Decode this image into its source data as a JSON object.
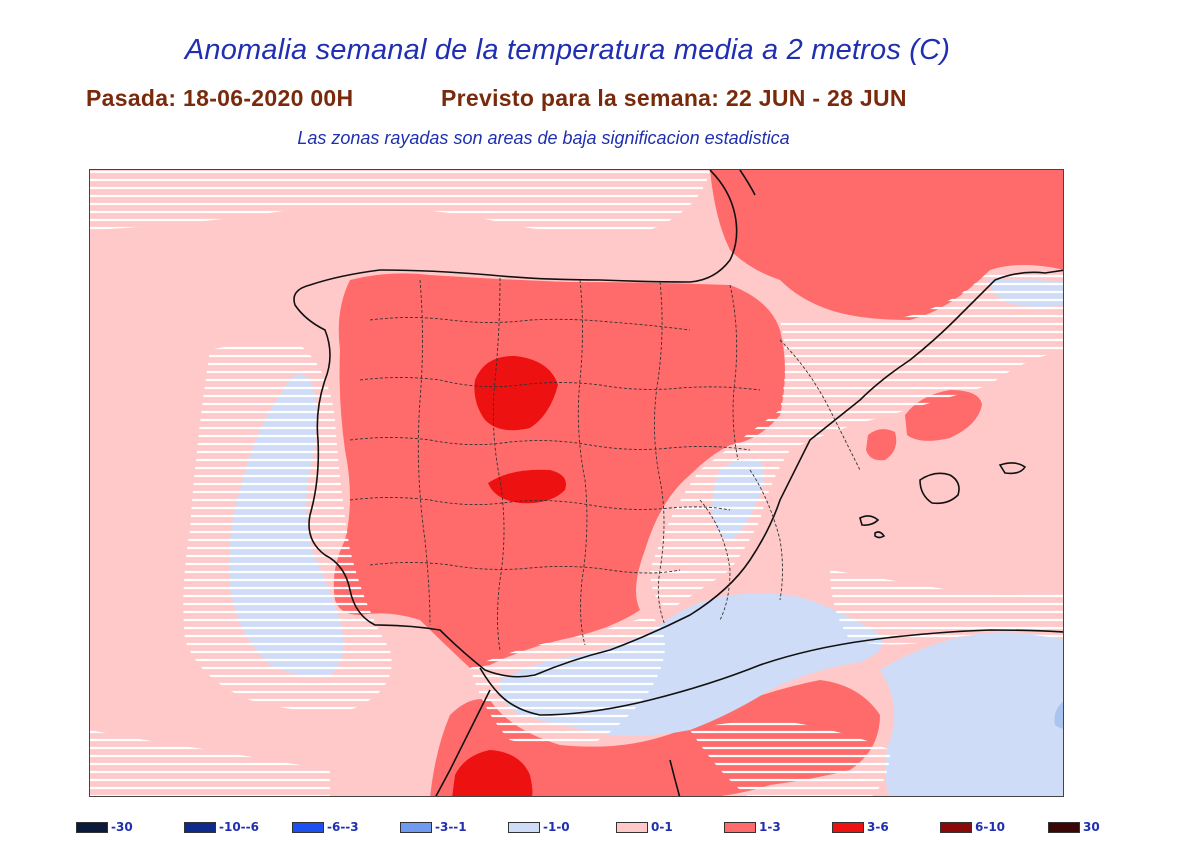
{
  "header": {
    "title": "Anomalia semanal de la temperatura media a 2 metros (C)",
    "run": "Pasada: 18-06-2020 00H",
    "forecast": "Previsto para la semana:  22 JUN - 28 JUN",
    "note": "Las zonas rayadas son areas de baja significacion estadistica"
  },
  "colors": {
    "anom_0_1": "#ffc9c9",
    "anom_1_3": "#ff6b6b",
    "anom_3_6": "#ee1111",
    "anom_neg1_0": "#cfdcf7",
    "anom_neg3_neg1": "#a9c4ee",
    "hatch": "#ffffff",
    "coastline": "#111111"
  },
  "legend": {
    "items": [
      {
        "label": "-30",
        "color": "#0b1a3a"
      },
      {
        "label": "-10--6",
        "color": "#0d2a8c"
      },
      {
        "label": "-6--3",
        "color": "#1d50f0"
      },
      {
        "label": "-3--1",
        "color": "#6f9af0"
      },
      {
        "label": "-1-0",
        "color": "#cfdcf7"
      },
      {
        "label": "0-1",
        "color": "#ffc9c9"
      },
      {
        "label": "1-3",
        "color": "#ff6b6b"
      },
      {
        "label": "3-6",
        "color": "#ee1111"
      },
      {
        "label": "6-10",
        "color": "#8a0a0a"
      },
      {
        "label": "30",
        "color": "#3a0606"
      }
    ]
  }
}
